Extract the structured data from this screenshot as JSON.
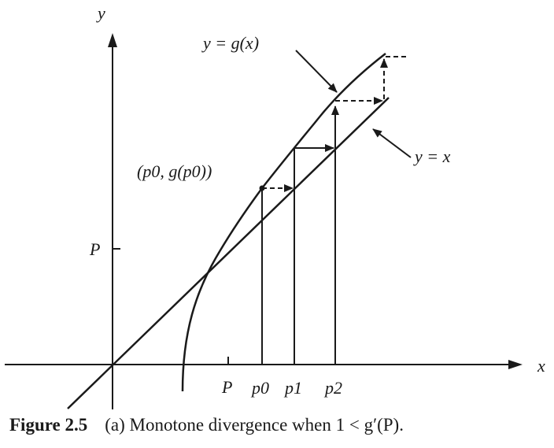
{
  "figure": {
    "caption_label": "Figure 2.5",
    "caption_text": "(a) Monotone divergence when 1 < g′(P)."
  },
  "diagram": {
    "axis_x_label": "x",
    "axis_y_label": "y",
    "curve_label": "y = g(x)",
    "line_label": "y = x",
    "point_label": "(p0, g(p0))",
    "y_tick_label": "P",
    "x_tick_labels": [
      "P",
      "p0",
      "p1",
      "p2"
    ],
    "line_color": "#1a1a1a"
  }
}
